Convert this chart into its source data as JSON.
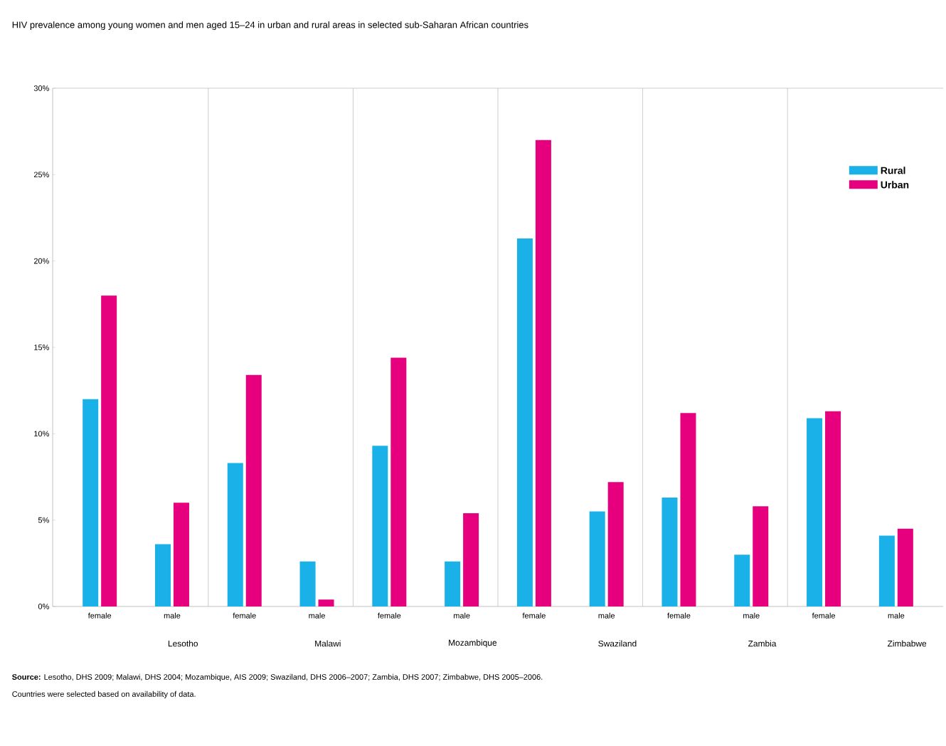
{
  "chart_data": {
    "type": "bar",
    "title": "HIV prevalence among young women and men aged 15–24 in urban and rural areas in selected sub-Saharan African countries",
    "categories": [
      "female",
      "male",
      "female",
      "male",
      "female",
      "male",
      "female",
      "male",
      "female",
      "male",
      "female",
      "male"
    ],
    "series": [
      {
        "name": "Rural",
        "color": "#1ab0e8",
        "values": [
          12.0,
          3.6,
          8.3,
          2.6,
          9.3,
          2.6,
          21.3,
          5.5,
          6.3,
          3.0,
          10.9,
          4.1
        ]
      },
      {
        "name": "Urban",
        "color": "#e6007e",
        "values": [
          18.0,
          6.0,
          13.4,
          0.4,
          14.4,
          5.4,
          27.0,
          7.2,
          11.2,
          5.8,
          11.3,
          4.5
        ]
      }
    ],
    "ylim": [
      0,
      30
    ],
    "yticks": [
      {
        "value": 0,
        "label": "0%"
      },
      {
        "value": 5,
        "label": "5%"
      },
      {
        "value": 10,
        "label": "10%"
      },
      {
        "value": 15,
        "label": "15%"
      },
      {
        "value": 20,
        "label": "20%"
      },
      {
        "value": 25,
        "label": "25%"
      },
      {
        "value": 30,
        "label": "30%"
      }
    ],
    "legend": "top right",
    "annotations": [
      "Lesotho",
      "Malawi",
      "Mozambique",
      "Swaziland",
      "Zambia",
      "Zimbabwe",
      "**Source:** Lesotho, DHS 2009; Malawi, DHS 2004; Mozambique, AIS 2009; Swaziland, DHS 2006–2007; Zambia, DHS 2007; Zimbabwe, DHS 2005–2006.",
      "Countries were selected based on availability of data."
    ]
  }
}
